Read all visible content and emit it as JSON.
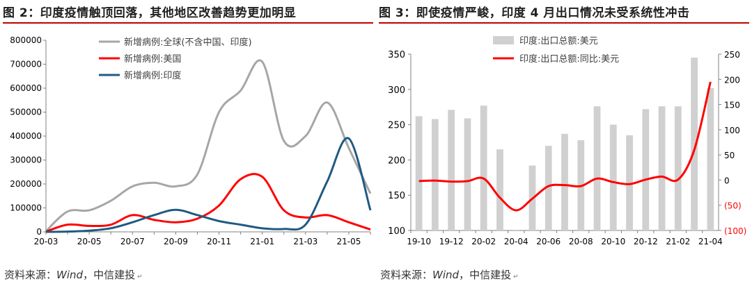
{
  "left": {
    "title": "图 2：印度疫情触顶回落，其他地区改善趋势更加明显",
    "source_label": "资料来源：",
    "source_name": "Wind",
    "source_sep": "，",
    "source_org": "中信建投",
    "chart_data": {
      "type": "line",
      "x": [
        "20-03",
        "20-04",
        "20-05",
        "20-06",
        "20-07",
        "20-08",
        "20-09",
        "20-10",
        "20-11",
        "20-12",
        "21-01",
        "21-02",
        "21-03",
        "21-04",
        "21-05",
        "21-06"
      ],
      "x_tick_labels": [
        "20-03",
        "20-05",
        "20-07",
        "20-09",
        "20-11",
        "21-01",
        "21-03",
        "21-05"
      ],
      "ylim": [
        0,
        800000
      ],
      "y_ticks": [
        0,
        100000,
        200000,
        300000,
        400000,
        500000,
        600000,
        700000,
        800000
      ],
      "y_tick_labels": [
        "0",
        "100000",
        "200000",
        "300000",
        "400000",
        "500000",
        "600000",
        "700000",
        "800000"
      ],
      "legend_position": "top-center",
      "series": [
        {
          "name": "新增病例:全球(不含中国、印度)",
          "color": "#a6a6a6",
          "values": [
            3000,
            85000,
            90000,
            130000,
            190000,
            205000,
            190000,
            240000,
            500000,
            590000,
            710000,
            380000,
            400000,
            540000,
            350000,
            160000
          ]
        },
        {
          "name": "新增病例:美国",
          "color": "#ff0000",
          "values": [
            1000,
            30000,
            25000,
            30000,
            70000,
            50000,
            40000,
            55000,
            110000,
            220000,
            230000,
            90000,
            60000,
            70000,
            40000,
            10000
          ]
        },
        {
          "name": "新增病例:印度",
          "color": "#1f5a82",
          "values": [
            0,
            1000,
            5000,
            15000,
            40000,
            70000,
            92000,
            70000,
            45000,
            30000,
            15000,
            12000,
            30000,
            210000,
            390000,
            90000
          ]
        }
      ]
    }
  },
  "right": {
    "title": "图 3：即使疫情严峻，印度 4 月出口情况未受系统性冲击",
    "source_label": "资料来源：",
    "source_name": "Wind",
    "source_sep": "，",
    "source_org": "中信建投",
    "chart_data": {
      "type": "bar",
      "categories": [
        "19-10",
        "19-11",
        "19-12",
        "20-01",
        "20-02",
        "20-03",
        "20-04",
        "20-05",
        "20-06",
        "20-07",
        "20-08",
        "20-09",
        "20-10",
        "20-11",
        "20-12",
        "21-01",
        "21-02",
        "21-03",
        "21-04"
      ],
      "x_tick_labels": [
        "19-10",
        "19-12",
        "20-02",
        "20-04",
        "20-06",
        "20-08",
        "20-10",
        "20-12",
        "21-02",
        "21-04"
      ],
      "ylim_left": [
        100,
        350
      ],
      "y_ticks_left": [
        100,
        150,
        200,
        250,
        300,
        350
      ],
      "ylim_right": [
        -100,
        250
      ],
      "y_ticks_right": [
        -100,
        -50,
        0,
        50,
        100,
        150,
        200,
        250
      ],
      "y_tick_labels_right": [
        "(100)",
        "(50)",
        "0",
        "50",
        "100",
        "150",
        "200",
        "250"
      ],
      "legend_position": "top-left",
      "series": [
        {
          "name": "印度:出口总额:美元",
          "type": "bar",
          "axis": "left",
          "color": "#d0d0d0",
          "values": [
            262,
            258,
            271,
            259,
            277,
            215,
            101,
            192,
            220,
            237,
            228,
            276,
            250,
            235,
            272,
            276,
            276,
            345,
            302
          ]
        },
        {
          "name": "印度:出口总额:同比:美元",
          "type": "line",
          "axis": "right",
          "color": "#ff0000",
          "values": [
            -2,
            -1,
            -3,
            -2,
            3,
            -35,
            -60,
            -37,
            -12,
            -10,
            -12,
            3,
            -4,
            -8,
            1,
            7,
            1,
            60,
            195
          ]
        }
      ]
    }
  }
}
